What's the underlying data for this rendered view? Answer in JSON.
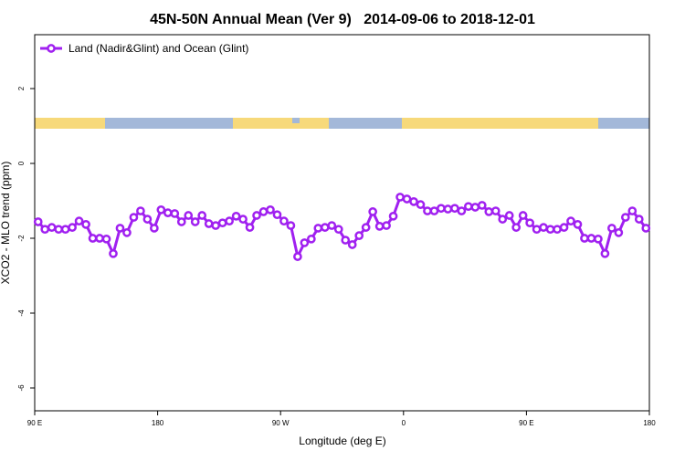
{
  "chart_data": {
    "type": "line",
    "title": "45N-50N Annual Mean (Ver 9)   2014-09-06 to 2018-12-01",
    "xlabel": "Longitude (deg E)",
    "ylabel": "XCO2 - MLO trend (ppm)",
    "xlim": [
      90,
      540
    ],
    "ylim": [
      -6.61,
      3.44
    ],
    "xticks": [
      {
        "value": 90,
        "label": "90 E"
      },
      180,
      {
        "value": 270,
        "label": "90 W"
      },
      {
        "value": 360,
        "label": "0"
      },
      {
        "value": 450,
        "label": "90 E"
      },
      {
        "value": 540,
        "label": "180"
      }
    ],
    "yticks": [
      -6,
      -4,
      -2,
      0,
      2
    ],
    "grid": false,
    "legend": "top-left",
    "x": [
      92.5,
      97.5,
      102.5,
      107.5,
      112.5,
      117.5,
      122.5,
      127.5,
      132.5,
      137.5,
      142.5,
      147.5,
      152.5,
      157.5,
      162.5,
      167.5,
      172.5,
      177.5,
      182.5,
      187.5,
      192.5,
      197.5,
      202.5,
      207.5,
      212.5,
      217.5,
      222.5,
      227.5,
      232.5,
      237.5,
      242.5,
      247.5,
      252.5,
      257.5,
      262.5,
      267.5,
      272.5,
      277.5,
      282.5,
      287.5,
      292.5,
      297.5,
      302.5,
      307.5,
      312.5,
      317.5,
      322.5,
      327.5,
      332.5,
      337.5,
      342.5,
      347.5,
      352.5,
      357.5,
      362.5,
      367.5,
      372.5,
      377.5,
      382.5,
      387.5,
      392.5,
      397.5,
      402.5,
      407.5,
      412.5,
      417.5,
      422.5,
      427.5,
      432.5,
      437.5,
      442.5,
      447.5,
      452.5,
      457.5,
      462.5,
      467.5,
      472.5,
      477.5,
      482.5,
      487.5,
      492.5,
      497.5,
      502.5,
      507.5,
      512.5,
      517.5,
      522.5,
      527.5,
      532.5,
      537.5
    ],
    "series": [
      {
        "name": "Land (Nadir&Glint) and Ocean (Glint)",
        "color": "#a020f0",
        "values": [
          -1.56,
          -1.76,
          -1.71,
          -1.76,
          -1.76,
          -1.71,
          -1.54,
          -1.63,
          -2.0,
          -2.0,
          -2.02,
          -2.41,
          -1.73,
          -1.85,
          -1.44,
          -1.27,
          -1.49,
          -1.73,
          -1.24,
          -1.32,
          -1.34,
          -1.56,
          -1.39,
          -1.56,
          -1.39,
          -1.61,
          -1.66,
          -1.59,
          -1.54,
          -1.41,
          -1.49,
          -1.71,
          -1.39,
          -1.29,
          -1.24,
          -1.37,
          -1.54,
          -1.66,
          -2.49,
          -2.12,
          -2.02,
          -1.73,
          -1.71,
          -1.66,
          -1.76,
          -2.05,
          -2.17,
          -1.93,
          -1.71,
          -1.29,
          -1.68,
          -1.66,
          -1.41,
          -0.9,
          -0.95,
          -1.02,
          -1.1,
          -1.27,
          -1.27,
          -1.2,
          -1.22,
          -1.2,
          -1.27,
          -1.15,
          -1.17,
          -1.12,
          -1.29,
          -1.27,
          -1.49,
          -1.39,
          -1.71,
          -1.39,
          -1.59,
          -1.76,
          -1.71,
          -1.76,
          -1.76,
          -1.71,
          -1.54,
          -1.63,
          -2.0,
          -2.0,
          -2.02,
          -2.41,
          -1.73,
          -1.85,
          -1.44,
          -1.27,
          -1.49,
          -1.73
        ]
      }
    ]
  }
}
